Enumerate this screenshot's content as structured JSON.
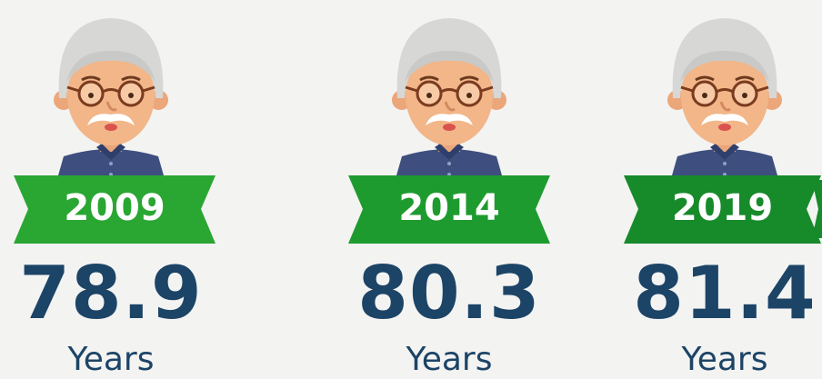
{
  "items": [
    {
      "year": "2009",
      "value": "78.9",
      "unit": "Years"
    },
    {
      "year": "2014",
      "value": "80.3",
      "unit": "Years"
    },
    {
      "year": "2019",
      "value": "81.4",
      "unit": "Years"
    }
  ]
}
